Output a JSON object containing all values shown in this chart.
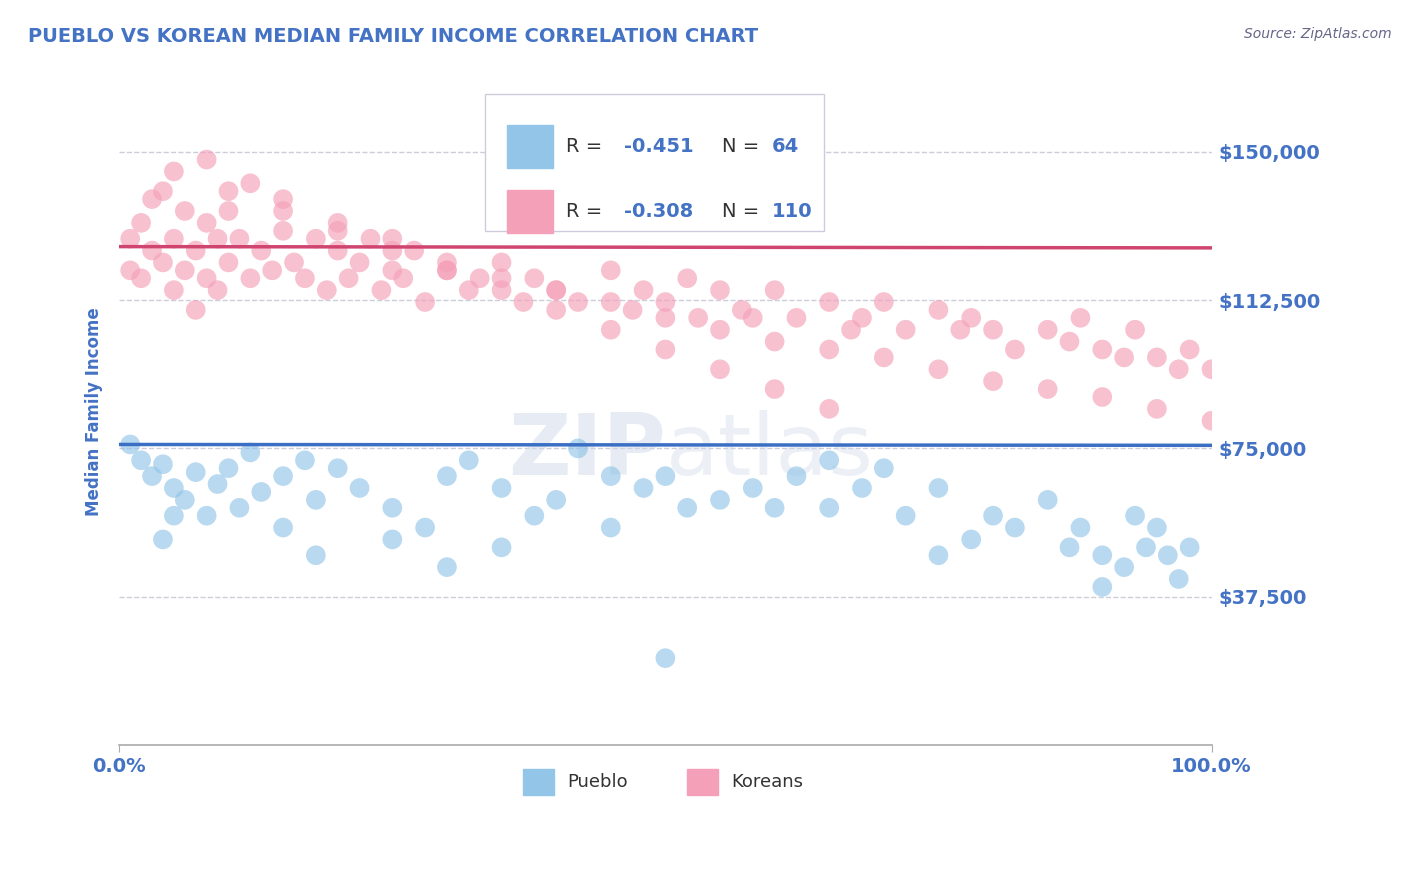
{
  "title": "PUEBLO VS KOREAN MEDIAN FAMILY INCOME CORRELATION CHART",
  "source_text": "Source: ZipAtlas.com",
  "ylabel": "Median Family Income",
  "watermark_zip": "ZIP",
  "watermark_atlas": "atlas",
  "xlim": [
    0,
    100
  ],
  "ylim": [
    0,
    168750
  ],
  "yticks": [
    0,
    37500,
    75000,
    112500,
    150000
  ],
  "ytick_labels": [
    "",
    "$37,500",
    "$75,000",
    "$112,500",
    "$150,000"
  ],
  "xtick_positions": [
    0,
    100
  ],
  "xtick_labels": [
    "0.0%",
    "100.0%"
  ],
  "pueblo_color": "#92C5E8",
  "korean_color": "#F4A0B8",
  "pueblo_line_color": "#3A6FC4",
  "korean_line_color": "#D04570",
  "pueblo_R": -0.451,
  "pueblo_N": 64,
  "korean_R": -0.308,
  "korean_N": 110,
  "pueblo_intercept": 76000,
  "pueblo_slope": -220,
  "korean_intercept": 126000,
  "korean_slope": -320,
  "background_color": "#FFFFFF",
  "grid_color": "#C8C8D8",
  "title_color": "#4472C4",
  "axis_label_color": "#4472C4",
  "tick_color": "#4472C4",
  "legend_bg": "#FFFFFF",
  "legend_border": "#BBBBCC",
  "legend_text_dark": "#333333",
  "legend_text_blue": "#4472C4",
  "pueblo_x": [
    1,
    2,
    3,
    4,
    5,
    6,
    7,
    8,
    9,
    10,
    11,
    12,
    13,
    15,
    17,
    18,
    20,
    22,
    25,
    28,
    30,
    32,
    35,
    38,
    40,
    42,
    45,
    48,
    50,
    52,
    55,
    58,
    60,
    62,
    65,
    68,
    70,
    72,
    75,
    78,
    80,
    82,
    85,
    87,
    88,
    90,
    92,
    93,
    94,
    95,
    96,
    97,
    98,
    4,
    5,
    15,
    18,
    25,
    30,
    35,
    45,
    65,
    75,
    90
  ],
  "pueblo_y": [
    76000,
    72000,
    68000,
    71000,
    65000,
    62000,
    69000,
    58000,
    66000,
    70000,
    60000,
    74000,
    64000,
    68000,
    72000,
    62000,
    70000,
    65000,
    60000,
    55000,
    68000,
    72000,
    65000,
    58000,
    62000,
    75000,
    68000,
    65000,
    68000,
    60000,
    62000,
    65000,
    60000,
    68000,
    72000,
    65000,
    70000,
    58000,
    65000,
    52000,
    58000,
    55000,
    62000,
    50000,
    55000,
    48000,
    45000,
    58000,
    50000,
    55000,
    48000,
    42000,
    50000,
    52000,
    58000,
    55000,
    48000,
    52000,
    45000,
    50000,
    55000,
    60000,
    48000,
    40000
  ],
  "pueblo_outlier_x": 50,
  "pueblo_outlier_y": 22000,
  "korean_x": [
    1,
    1,
    2,
    2,
    3,
    3,
    4,
    4,
    5,
    5,
    6,
    6,
    7,
    7,
    8,
    8,
    9,
    9,
    10,
    10,
    11,
    12,
    13,
    14,
    15,
    16,
    17,
    18,
    19,
    20,
    21,
    22,
    23,
    24,
    25,
    26,
    27,
    28,
    30,
    32,
    33,
    35,
    37,
    38,
    40,
    42,
    45,
    47,
    48,
    50,
    52,
    53,
    55,
    57,
    58,
    60,
    62,
    65,
    67,
    68,
    70,
    72,
    75,
    77,
    78,
    80,
    82,
    85,
    87,
    88,
    90,
    92,
    93,
    95,
    97,
    98,
    100,
    8,
    12,
    15,
    20,
    25,
    30,
    35,
    40,
    45,
    50,
    55,
    60,
    65,
    70,
    75,
    80,
    85,
    90,
    95,
    100,
    5,
    10,
    15,
    20,
    25,
    30,
    35,
    40,
    45,
    50,
    55,
    60,
    65
  ],
  "korean_y": [
    128000,
    120000,
    132000,
    118000,
    125000,
    138000,
    122000,
    140000,
    128000,
    115000,
    135000,
    120000,
    125000,
    110000,
    132000,
    118000,
    128000,
    115000,
    135000,
    122000,
    128000,
    118000,
    125000,
    120000,
    130000,
    122000,
    118000,
    128000,
    115000,
    125000,
    118000,
    122000,
    128000,
    115000,
    120000,
    118000,
    125000,
    112000,
    120000,
    115000,
    118000,
    122000,
    112000,
    118000,
    115000,
    112000,
    120000,
    110000,
    115000,
    112000,
    118000,
    108000,
    115000,
    110000,
    108000,
    115000,
    108000,
    112000,
    105000,
    108000,
    112000,
    105000,
    110000,
    105000,
    108000,
    105000,
    100000,
    105000,
    102000,
    108000,
    100000,
    98000,
    105000,
    98000,
    95000,
    100000,
    95000,
    148000,
    142000,
    138000,
    132000,
    128000,
    122000,
    118000,
    115000,
    112000,
    108000,
    105000,
    102000,
    100000,
    98000,
    95000,
    92000,
    90000,
    88000,
    85000,
    82000,
    145000,
    140000,
    135000,
    130000,
    125000,
    120000,
    115000,
    110000,
    105000,
    100000,
    95000,
    90000,
    85000
  ]
}
